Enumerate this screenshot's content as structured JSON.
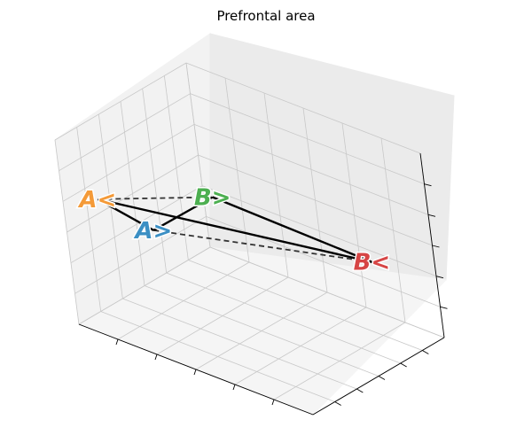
{
  "chart_data": {
    "type": "scatter3d",
    "title": "Prefrontal area",
    "xlabel": "",
    "ylabel": "",
    "zlabel": "",
    "grid": true,
    "tick_labels_shown": false,
    "points": [
      {
        "id": "A_gt",
        "label": "A>",
        "color": "#3b8fc4",
        "x": 0.06,
        "y": 0.36,
        "z": 0.4
      },
      {
        "id": "A_lt",
        "label": "A<",
        "color": "#f49a38",
        "x": 0.0,
        "y": 0.0,
        "z": 0.73
      },
      {
        "id": "B_gt",
        "label": "B>",
        "color": "#4caf50",
        "x": 0.59,
        "y": 0.08,
        "z": 1.0
      },
      {
        "id": "B_lt",
        "label": "B<",
        "color": "#d64545",
        "x": 1.0,
        "y": 0.76,
        "z": 0.48
      }
    ],
    "edges": [
      {
        "from": "A_lt",
        "to": "B_gt",
        "style": "dashed"
      },
      {
        "from": "A_gt",
        "to": "B_lt",
        "style": "dashed"
      },
      {
        "from": "A_lt",
        "to": "A_gt",
        "style": "solid"
      },
      {
        "from": "A_lt",
        "to": "B_lt",
        "style": "solid"
      },
      {
        "from": "A_gt",
        "to": "B_gt",
        "style": "solid"
      },
      {
        "from": "B_gt",
        "to": "B_lt",
        "style": "solid"
      }
    ]
  }
}
